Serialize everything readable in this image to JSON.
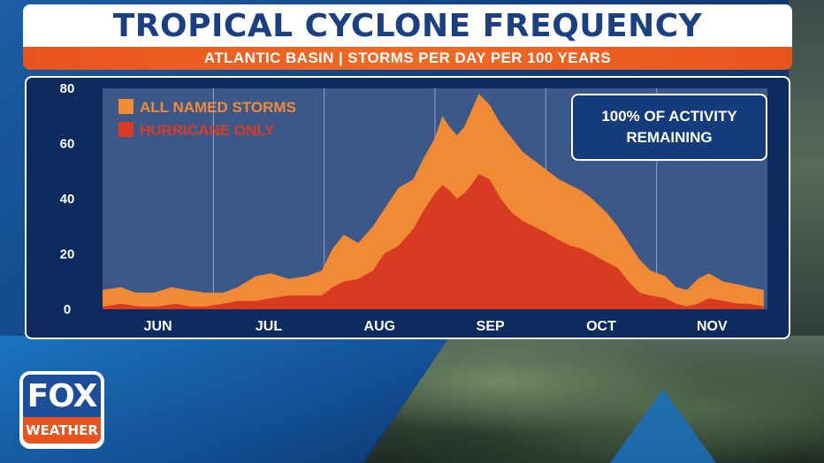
{
  "header": {
    "title": "TROPICAL CYCLONE FREQUENCY",
    "subtitle": "ATLANTIC BASIN | STORMS PER DAY PER 100 YEARS"
  },
  "annotation": {
    "text": "100% OF ACTIVITY REMAINING"
  },
  "logo": {
    "top": "FOX",
    "bottom": "WEATHER"
  },
  "colors": {
    "named_storms": "#f08a35",
    "hurricane": "#d93a22",
    "plot_bg": "#3c5889",
    "panel_bg": "#0e2b5f"
  },
  "chart_data": {
    "type": "area",
    "title": "TROPICAL CYCLONE FREQUENCY",
    "subtitle": "ATLANTIC BASIN | STORMS PER DAY PER 100 YEARS",
    "xlabel": "",
    "ylabel": "",
    "ylim": [
      0,
      80
    ],
    "yticks": [
      0,
      20,
      40,
      60,
      80
    ],
    "months": [
      "JUN",
      "JUL",
      "AUG",
      "SEP",
      "OCT",
      "NOV"
    ],
    "xlim_days": [
      0,
      182
    ],
    "grid": true,
    "legend_position": "top-left",
    "series": [
      {
        "name": "ALL NAMED STORMS",
        "color": "#f08a35",
        "points": [
          [
            0,
            7
          ],
          [
            5,
            8
          ],
          [
            9,
            6
          ],
          [
            14,
            6
          ],
          [
            19,
            8
          ],
          [
            23,
            7
          ],
          [
            28,
            6
          ],
          [
            33,
            6
          ],
          [
            37,
            8
          ],
          [
            42,
            12
          ],
          [
            46,
            13
          ],
          [
            51,
            11
          ],
          [
            56,
            12
          ],
          [
            60,
            14
          ],
          [
            63,
            22
          ],
          [
            66,
            27
          ],
          [
            70,
            24
          ],
          [
            74,
            30
          ],
          [
            78,
            38
          ],
          [
            81,
            44
          ],
          [
            85,
            47
          ],
          [
            88,
            55
          ],
          [
            91,
            62
          ],
          [
            93,
            70
          ],
          [
            95,
            66
          ],
          [
            97,
            63
          ],
          [
            99,
            66
          ],
          [
            101,
            72
          ],
          [
            103,
            78
          ],
          [
            106,
            74
          ],
          [
            109,
            67
          ],
          [
            112,
            62
          ],
          [
            115,
            57
          ],
          [
            118,
            54
          ],
          [
            121,
            51
          ],
          [
            125,
            47
          ],
          [
            128,
            45
          ],
          [
            131,
            43
          ],
          [
            134,
            40
          ],
          [
            138,
            35
          ],
          [
            141,
            30
          ],
          [
            144,
            24
          ],
          [
            147,
            18
          ],
          [
            150,
            14
          ],
          [
            154,
            12
          ],
          [
            157,
            8
          ],
          [
            160,
            7
          ],
          [
            163,
            11
          ],
          [
            166,
            13
          ],
          [
            170,
            10
          ],
          [
            174,
            9
          ],
          [
            177,
            8
          ],
          [
            181,
            7
          ]
        ]
      },
      {
        "name": "HURRICANE ONLY",
        "color": "#d93a22",
        "points": [
          [
            0,
            1
          ],
          [
            5,
            2
          ],
          [
            10,
            1
          ],
          [
            15,
            1
          ],
          [
            20,
            2
          ],
          [
            24,
            1
          ],
          [
            28,
            1
          ],
          [
            33,
            2
          ],
          [
            37,
            3
          ],
          [
            42,
            3
          ],
          [
            46,
            4
          ],
          [
            51,
            5
          ],
          [
            56,
            5
          ],
          [
            60,
            5
          ],
          [
            63,
            8
          ],
          [
            66,
            10
          ],
          [
            70,
            11
          ],
          [
            74,
            14
          ],
          [
            77,
            20
          ],
          [
            81,
            23
          ],
          [
            85,
            29
          ],
          [
            88,
            36
          ],
          [
            91,
            42
          ],
          [
            93,
            45
          ],
          [
            95,
            43
          ],
          [
            97,
            40
          ],
          [
            99,
            42
          ],
          [
            101,
            45
          ],
          [
            103,
            49
          ],
          [
            106,
            47
          ],
          [
            109,
            40
          ],
          [
            112,
            35
          ],
          [
            115,
            32
          ],
          [
            118,
            30
          ],
          [
            121,
            28
          ],
          [
            125,
            25
          ],
          [
            128,
            23
          ],
          [
            131,
            22
          ],
          [
            134,
            20
          ],
          [
            138,
            17
          ],
          [
            141,
            15
          ],
          [
            144,
            10
          ],
          [
            147,
            6
          ],
          [
            150,
            5
          ],
          [
            154,
            4
          ],
          [
            157,
            2
          ],
          [
            160,
            1
          ],
          [
            163,
            2
          ],
          [
            166,
            4
          ],
          [
            170,
            3
          ],
          [
            174,
            2
          ],
          [
            177,
            2
          ],
          [
            181,
            1
          ]
        ]
      }
    ]
  }
}
